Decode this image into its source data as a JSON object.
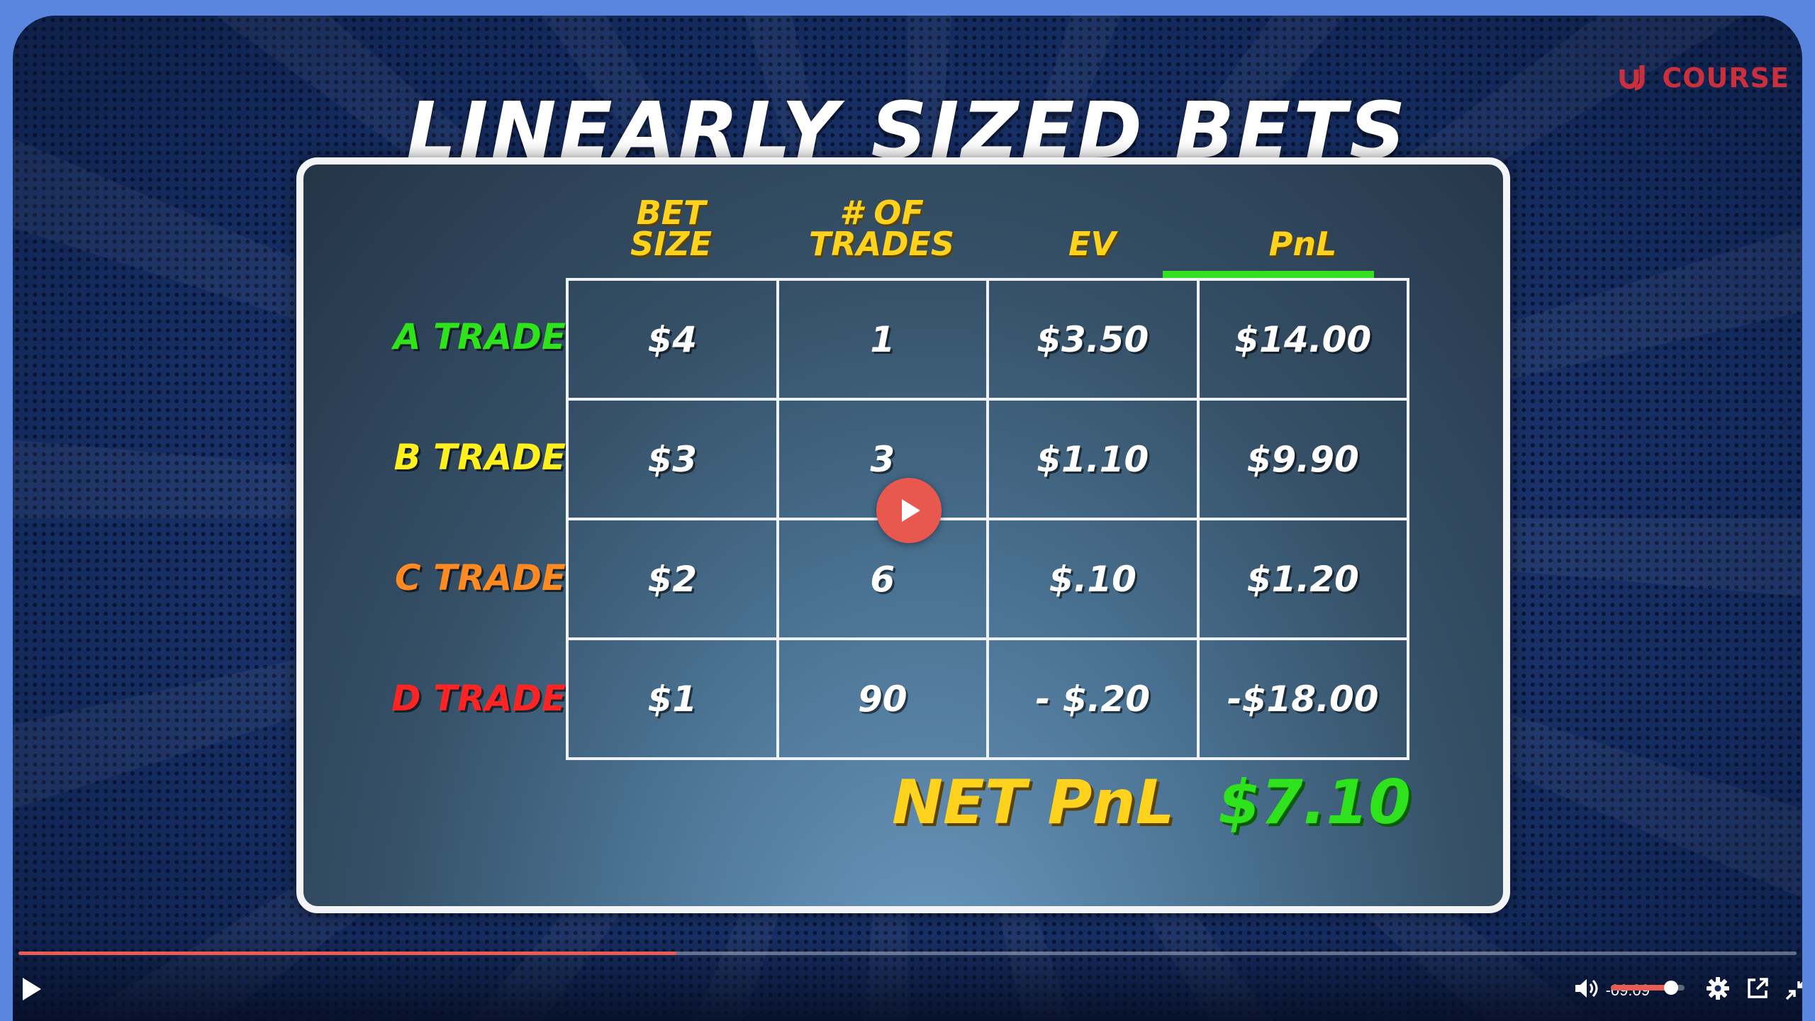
{
  "slide": {
    "title": "LINEARLY SIZED BETS",
    "brand": "COURSE",
    "columns": [
      "BET\nSIZE",
      "# OF\nTRADES",
      "EV",
      "PnL"
    ],
    "rows": [
      {
        "label": "A TRADE",
        "color": "#2ee31c",
        "cells": [
          "$4",
          "1",
          "$3.50",
          "$14.00"
        ]
      },
      {
        "label": "B TRADE",
        "color": "#fff01e",
        "cells": [
          "$3",
          "3",
          "$1.10",
          "$9.90"
        ]
      },
      {
        "label": "C TRADE",
        "color": "#ff8a22",
        "cells": [
          "$2",
          "6",
          "$.10",
          "$1.20"
        ]
      },
      {
        "label": "D TRADE",
        "color": "#ff2424",
        "cells": [
          "$1",
          "90",
          "- $.20",
          "-$18.00"
        ]
      }
    ],
    "net_label": "NET PnL",
    "net_value": "$7.10"
  },
  "player": {
    "time_remaining": "-09:09",
    "progress": 0.37,
    "volume": 0.82,
    "accent_color": "#ea5b52",
    "icons": [
      "play-icon",
      "volume-icon",
      "settings-icon",
      "popout-icon",
      "exit-fullscreen-icon"
    ]
  }
}
